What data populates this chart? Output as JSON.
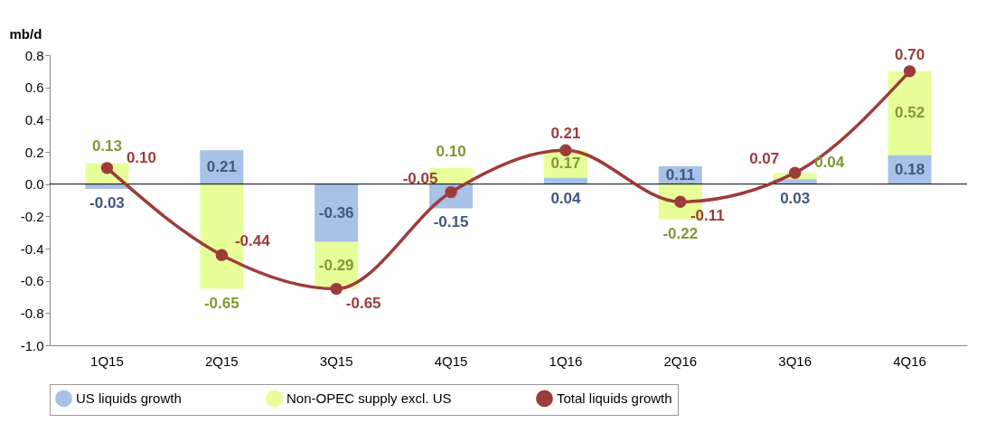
{
  "chart_data": {
    "type": "bar",
    "stacked": true,
    "ylabel": "mb/d",
    "categories": [
      "1Q15",
      "2Q15",
      "3Q15",
      "4Q15",
      "1Q16",
      "2Q16",
      "3Q16",
      "4Q16"
    ],
    "series": [
      {
        "name": "US liquids growth",
        "color": "#a8c1e6",
        "values": [
          -0.03,
          0.21,
          -0.36,
          -0.15,
          0.04,
          0.11,
          0.03,
          0.18
        ],
        "value_labels": [
          "-0.03",
          "0.21",
          "-0.36",
          "-0.15",
          "0.04",
          "0.11",
          "0.03",
          "0.18"
        ]
      },
      {
        "name": "Non-OPEC supply excl. US",
        "color": "#e8ff99",
        "values": [
          0.13,
          -0.65,
          -0.29,
          0.1,
          0.17,
          -0.22,
          0.04,
          0.52
        ],
        "value_labels": [
          "0.13",
          "-0.65",
          "-0.29",
          "0.10",
          "0.17",
          "-0.22",
          "0.04",
          "0.52"
        ]
      },
      {
        "name": "Total liquids growth",
        "type": "line",
        "color": "#9e3b3b",
        "marker": "circle",
        "line_style": "solid",
        "values": [
          0.1,
          -0.44,
          -0.65,
          -0.05,
          0.21,
          -0.11,
          0.07,
          0.7
        ],
        "value_labels": [
          "0.10",
          "-0.44",
          "-0.65",
          "-0.05",
          "0.21",
          "-0.11",
          "0.07",
          "0.70"
        ]
      }
    ],
    "ylim": [
      -1.0,
      0.8
    ],
    "yticks": [
      {
        "value": -1.0,
        "label": "-1.0"
      },
      {
        "value": -0.8,
        "label": "-0.8"
      },
      {
        "value": -0.6,
        "label": "-0.6"
      },
      {
        "value": -0.4,
        "label": "-0.4"
      },
      {
        "value": -0.2,
        "label": "-0.2"
      },
      {
        "value": 0.0,
        "label": "0.0"
      },
      {
        "value": 0.2,
        "label": "0.2"
      },
      {
        "value": 0.4,
        "label": "0.4"
      },
      {
        "value": 0.6,
        "label": "0.6"
      },
      {
        "value": 0.8,
        "label": "0.8"
      }
    ],
    "ref_lines": [
      {
        "axis": "y",
        "value": 0,
        "color": "#000000"
      }
    ],
    "grid": false,
    "legend": "bottom"
  }
}
